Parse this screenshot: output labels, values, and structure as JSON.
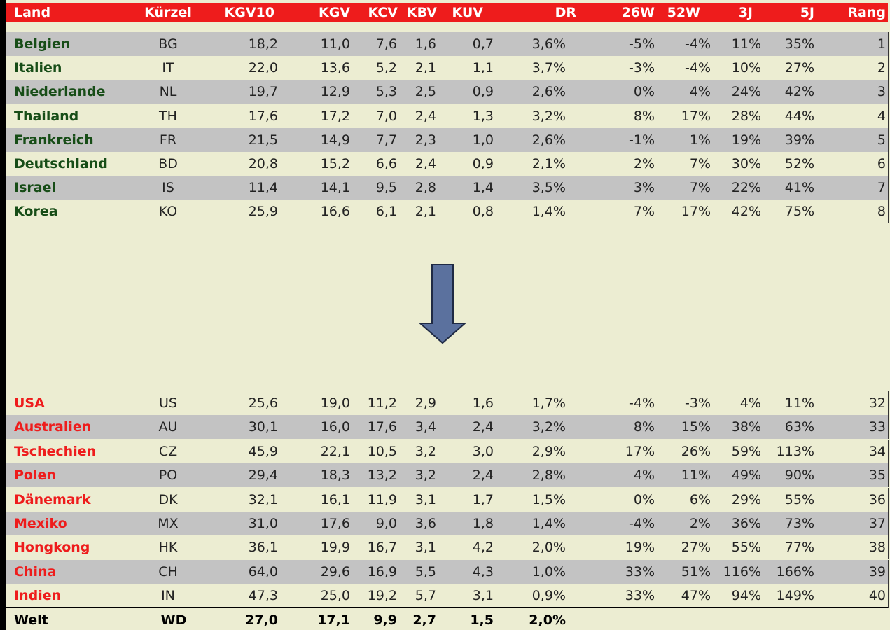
{
  "header": [
    "Land",
    "Kürzel",
    "KGV10",
    "KGV",
    "KCV",
    "KBV",
    "KUV",
    "DR",
    "26W",
    "52W",
    "3J",
    "5J",
    "Rang"
  ],
  "top_rows": [
    [
      "Belgien",
      "BG",
      "18,2",
      "11,0",
      "7,6",
      "1,6",
      "0,7",
      "3,6%",
      "-5%",
      "-4%",
      "11%",
      "35%",
      "1"
    ],
    [
      "Italien",
      "IT",
      "22,0",
      "13,6",
      "5,2",
      "2,1",
      "1,1",
      "3,7%",
      "-3%",
      "-4%",
      "10%",
      "27%",
      "2"
    ],
    [
      "Niederlande",
      "NL",
      "19,7",
      "12,9",
      "5,3",
      "2,5",
      "0,9",
      "2,6%",
      "0%",
      "4%",
      "24%",
      "42%",
      "3"
    ],
    [
      "Thailand",
      "TH",
      "17,6",
      "17,2",
      "7,0",
      "2,4",
      "1,3",
      "3,2%",
      "8%",
      "17%",
      "28%",
      "44%",
      "4"
    ],
    [
      "Frankreich",
      "FR",
      "21,5",
      "14,9",
      "7,7",
      "2,3",
      "1,0",
      "2,6%",
      "-1%",
      "1%",
      "19%",
      "39%",
      "5"
    ],
    [
      "Deutschland",
      "BD",
      "20,8",
      "15,2",
      "6,6",
      "2,4",
      "0,9",
      "2,1%",
      "2%",
      "7%",
      "30%",
      "52%",
      "6"
    ],
    [
      "Israel",
      "IS",
      "11,4",
      "14,1",
      "9,5",
      "2,8",
      "1,4",
      "3,5%",
      "3%",
      "7%",
      "22%",
      "41%",
      "7"
    ],
    [
      "Korea",
      "KO",
      "25,9",
      "16,6",
      "6,1",
      "2,1",
      "0,8",
      "1,4%",
      "7%",
      "17%",
      "42%",
      "75%",
      "8"
    ]
  ],
  "bottom_rows": [
    [
      "USA",
      "US",
      "25,6",
      "19,0",
      "11,2",
      "2,9",
      "1,6",
      "1,7%",
      "-4%",
      "-3%",
      "4%",
      "11%",
      "32"
    ],
    [
      "Australien",
      "AU",
      "30,1",
      "16,0",
      "17,6",
      "3,4",
      "2,4",
      "3,2%",
      "8%",
      "15%",
      "38%",
      "63%",
      "33"
    ],
    [
      "Tschechien",
      "CZ",
      "45,9",
      "22,1",
      "10,5",
      "3,2",
      "3,0",
      "2,9%",
      "17%",
      "26%",
      "59%",
      "113%",
      "34"
    ],
    [
      "Polen",
      "PO",
      "29,4",
      "18,3",
      "13,2",
      "3,2",
      "2,4",
      "2,8%",
      "4%",
      "11%",
      "49%",
      "90%",
      "35"
    ],
    [
      "Dänemark",
      "DK",
      "32,1",
      "16,1",
      "11,9",
      "3,1",
      "1,7",
      "1,5%",
      "0%",
      "6%",
      "29%",
      "55%",
      "36"
    ],
    [
      "Mexiko",
      "MX",
      "31,0",
      "17,6",
      "9,0",
      "3,6",
      "1,8",
      "1,4%",
      "-4%",
      "2%",
      "36%",
      "73%",
      "37"
    ],
    [
      "Hongkong",
      "HK",
      "36,1",
      "19,9",
      "16,7",
      "3,1",
      "4,2",
      "2,0%",
      "19%",
      "27%",
      "55%",
      "77%",
      "38"
    ],
    [
      "China",
      "CH",
      "64,0",
      "29,6",
      "16,9",
      "5,5",
      "4,3",
      "1,0%",
      "33%",
      "51%",
      "116%",
      "166%",
      "39"
    ],
    [
      "Indien",
      "IN",
      "47,3",
      "25,0",
      "19,2",
      "5,7",
      "3,1",
      "0,9%",
      "33%",
      "47%",
      "94%",
      "149%",
      "40"
    ]
  ],
  "total": [
    "Welt",
    "WD",
    "27,0",
    "17,1",
    "9,9",
    "2,7",
    "1,5",
    "2,0%"
  ]
}
